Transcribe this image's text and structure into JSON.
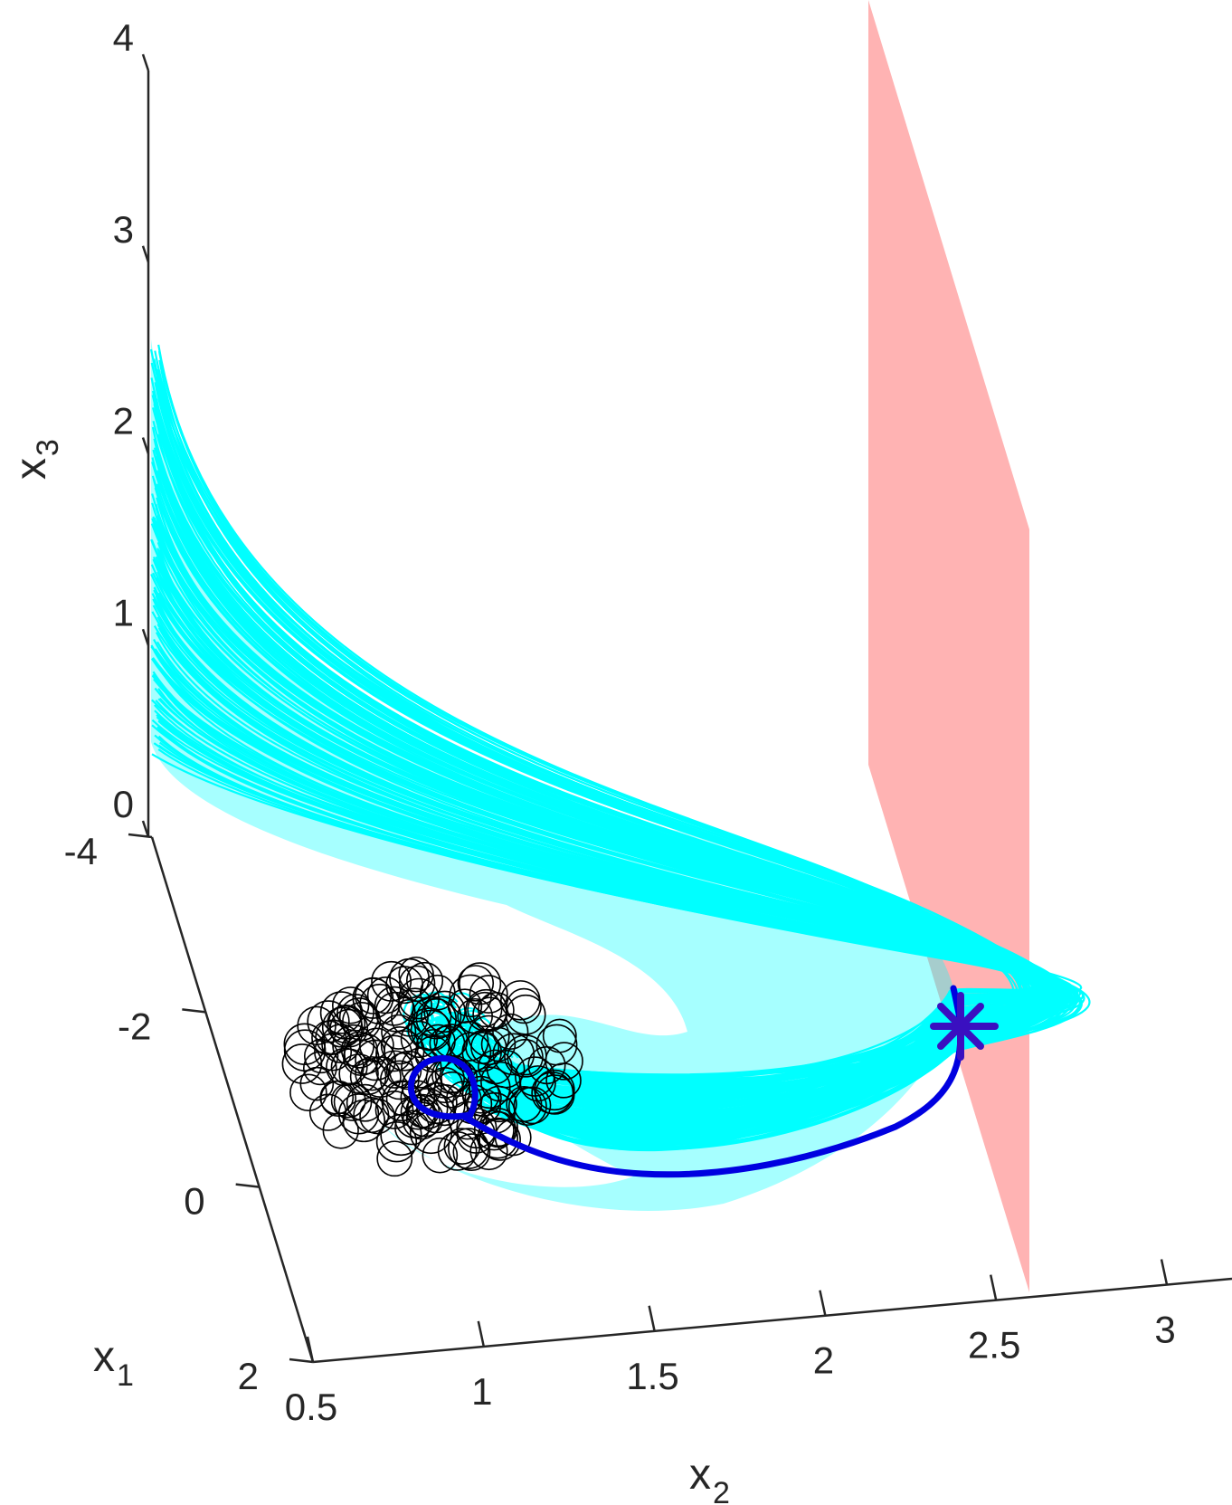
{
  "chart_data": {
    "type": "line3d",
    "title": "",
    "axes": {
      "x1": {
        "label": "x",
        "subscript": "1",
        "ticks": [
          -4,
          -2,
          0,
          2
        ],
        "tick_labels": [
          "-4",
          "-2",
          "0",
          "2"
        ],
        "range": [
          -4,
          2
        ]
      },
      "x2": {
        "label": "x",
        "subscript": "2",
        "ticks": [
          0.5,
          1,
          1.5,
          2,
          2.5,
          3
        ],
        "tick_labels": [
          "0.5",
          "1",
          "1.5",
          "2",
          "2.5",
          "3"
        ],
        "range": [
          0.5,
          3.5
        ]
      },
      "x3": {
        "label": "x",
        "subscript": "3",
        "ticks": [
          0,
          1,
          2,
          3,
          4
        ],
        "tick_labels": [
          "0",
          "1",
          "2",
          "3",
          "4"
        ],
        "range": [
          0,
          4
        ]
      }
    },
    "grid": false,
    "colors": {
      "bundle": "#00ffff",
      "highlight": "#0000e0",
      "circles": "#000000",
      "plane": "#ffb3b3",
      "star": "#3a10c0",
      "axis": "#262626"
    },
    "series": [
      {
        "role": "trajectory bundle",
        "style": "cyan thin lines, many trajectories"
      },
      {
        "role": "initial points",
        "style": "black circle markers"
      },
      {
        "role": "nominal trajectory",
        "style": "thick blue line",
        "points": [
          [
            -2.4,
            0.75,
            0.05
          ],
          [
            -1.6,
            0.95,
            0.05
          ],
          [
            -0.7,
            1.5,
            0.05
          ],
          [
            0.0,
            2.1,
            0.05
          ],
          [
            0.3,
            2.45,
            0.15
          ]
        ]
      },
      {
        "role": "switching plane",
        "style": "pink vertical plane",
        "x2": 2.5
      },
      {
        "role": "terminal point",
        "style": "purple asterisk marker",
        "point": [
          0.3,
          2.45,
          0.15
        ]
      }
    ]
  }
}
